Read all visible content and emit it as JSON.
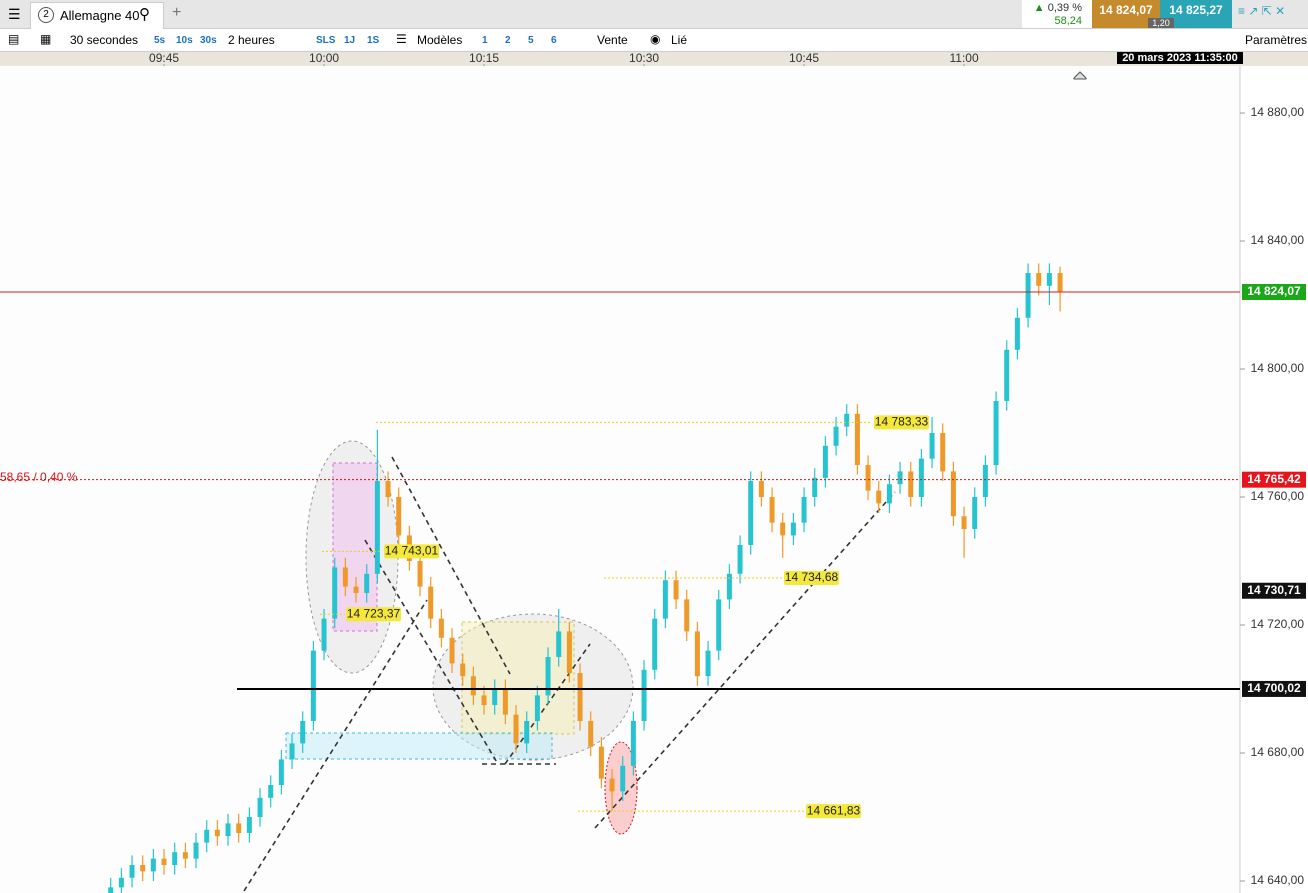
{
  "header": {
    "tab_number": "2",
    "tab_title": "Allemagne 40",
    "change_pct": "0,39 %",
    "change_pts": "58,24",
    "bid": "14 824,07",
    "spread": "1,20",
    "ask": "14 825,27"
  },
  "toolbar": {
    "interval": "30 secondes",
    "intervals": [
      "5s",
      "10s",
      "30s"
    ],
    "range": "2 heures",
    "ranges": [
      "SLS",
      "1J",
      "1S"
    ],
    "templates": "Modèles",
    "layouts": [
      "1",
      "2",
      "5",
      "6"
    ],
    "order": "Vente",
    "link": "Lié",
    "settings": "Paramètres"
  },
  "chart_data": {
    "type": "candlestick",
    "date_label": "20 mars 2023 11:35:00",
    "change_label": "58,65 / 0,40 %",
    "ylim": [
      14636.25,
      14894.7
    ],
    "yticks": [
      {
        "value": 14640,
        "label": "14 640,00"
      },
      {
        "value": 14680,
        "label": "14 680,00"
      },
      {
        "value": 14720,
        "label": "14 720,00"
      },
      {
        "value": 14760,
        "label": "14 760,00"
      },
      {
        "value": 14800,
        "label": "14 800,00"
      },
      {
        "value": 14840,
        "label": "14 840,00"
      },
      {
        "value": 14880,
        "label": "14 880,00"
      }
    ],
    "xticks": [
      {
        "value": 5,
        "label": "09:45"
      },
      {
        "value": 20,
        "label": "10:00"
      },
      {
        "value": 35,
        "label": "10:15"
      },
      {
        "value": 50,
        "label": "10:30"
      },
      {
        "value": 65,
        "label": "10:45"
      },
      {
        "value": 80,
        "label": "11:00"
      }
    ],
    "up_color": "#26c4d0",
    "down_color": "#ef9a28",
    "open": [
      14636,
      14638,
      14641,
      14645,
      14643,
      14647,
      14645,
      14649,
      14647,
      14652,
      14656,
      14654,
      14658,
      14655,
      14660,
      14666,
      14670,
      14678,
      14683,
      14690,
      14712,
      14722,
      14738,
      14732,
      14730,
      14736,
      14765,
      14760,
      14748,
      14740,
      14732,
      14722,
      14716,
      14708,
      14704,
      14698,
      14695,
      14700,
      14692,
      14683,
      14690,
      14698,
      14710,
      14718,
      14705,
      14690,
      14682,
      14672,
      14668,
      14676,
      14690,
      14706,
      14722,
      14734,
      14728,
      14718,
      14704,
      14712,
      14728,
      14736,
      14745,
      14765,
      14760,
      14752,
      14748,
      14752,
      14760,
      14766,
      14776,
      14782,
      14786,
      14770,
      14762,
      14758,
      14764,
      14768,
      14760,
      14772,
      14780,
      14768,
      14754,
      14750,
      14760,
      14770,
      14790,
      14806,
      14816,
      14830,
      14826,
      14830
    ],
    "high": [
      14641,
      14644,
      14648,
      14648,
      14650,
      14650,
      14652,
      14652,
      14655,
      14659,
      14659,
      14661,
      14661,
      14663,
      14669,
      14673,
      14681,
      14686,
      14693,
      14715,
      14725,
      14741,
      14741,
      14735,
      14739,
      14781,
      14768,
      14763,
      14751,
      14743,
      14735,
      14725,
      14719,
      14711,
      14707,
      14701,
      14703,
      14703,
      14695,
      14693,
      14701,
      14713,
      14725,
      14721,
      14708,
      14693,
      14685,
      14675,
      14679,
      14693,
      14709,
      14725,
      14737,
      14737,
      14731,
      14721,
      14715,
      14731,
      14739,
      14748,
      14768,
      14768,
      14763,
      14755,
      14755,
      14763,
      14769,
      14779,
      14785,
      14789,
      14789,
      14773,
      14765,
      14767,
      14771,
      14771,
      14775,
      14785,
      14783,
      14771,
      14757,
      14763,
      14773,
      14793,
      14809,
      14819,
      14833,
      14833,
      14833,
      14832
    ],
    "low": [
      14633,
      14635,
      14638,
      14640,
      14640,
      14642,
      14642,
      14644,
      14644,
      14649,
      14651,
      14651,
      14652,
      14652,
      14657,
      14663,
      14667,
      14675,
      14680,
      14687,
      14709,
      14719,
      14729,
      14727,
      14727,
      14733,
      14757,
      14745,
      14737,
      14729,
      14719,
      14713,
      14705,
      14701,
      14695,
      14692,
      14692,
      14689,
      14680,
      14680,
      14687,
      14695,
      14707,
      14702,
      14687,
      14679,
      14669,
      14661.83,
      14665,
      14673,
      14687,
      14703,
      14719,
      14725,
      14715,
      14701,
      14701,
      14709,
      14725,
      14733,
      14742,
      14757,
      14749,
      14741,
      14745,
      14749,
      14757,
      14763,
      14773,
      14779,
      14767,
      14759,
      14755,
      14755,
      14761,
      14757,
      14757,
      14769,
      14765,
      14751,
      14741,
      14747,
      14757,
      14767,
      14787,
      14803,
      14813,
      14823,
      14820,
      14818
    ],
    "close": [
      14638,
      14641,
      14645,
      14643,
      14647,
      14645,
      14649,
      14647,
      14652,
      14656,
      14654,
      14658,
      14655,
      14660,
      14666,
      14670,
      14678,
      14683,
      14690,
      14712,
      14722,
      14738,
      14732,
      14730,
      14736,
      14765,
      14760,
      14748,
      14740,
      14732,
      14722,
      14716,
      14708,
      14704,
      14698,
      14695,
      14700,
      14692,
      14683,
      14690,
      14698,
      14710,
      14718,
      14705,
      14690,
      14682,
      14672,
      14668,
      14676,
      14690,
      14706,
      14722,
      14734,
      14728,
      14718,
      14704,
      14712,
      14728,
      14736,
      14745,
      14765,
      14760,
      14752,
      14748,
      14752,
      14760,
      14766,
      14776,
      14782,
      14786,
      14770,
      14762,
      14758,
      14764,
      14768,
      14760,
      14772,
      14780,
      14768,
      14754,
      14750,
      14760,
      14770,
      14790,
      14806,
      14816,
      14830,
      14826,
      14830,
      14824.07
    ],
    "levels": [
      {
        "value": 14824.07,
        "label": "14 824,07",
        "line_color": "#d02020",
        "style": "solid",
        "label_color": "#18a818"
      },
      {
        "value": 14765.42,
        "label": "14 765,42",
        "line_color": "#e01010",
        "style": "dotted",
        "label_color": "#e8141c"
      },
      {
        "value": 14730.71,
        "label": "14 730,71",
        "line_color": "#000000",
        "style": "none",
        "label_color": "#111111"
      },
      {
        "value": 14700.02,
        "label": "14 700,02",
        "line_color": "#000000",
        "style": "solid",
        "label_color": "#111111"
      }
    ],
    "annotations": [
      {
        "value": 14783.33,
        "label": "14 783,33"
      },
      {
        "value": 14743.01,
        "label": "14 743,01"
      },
      {
        "value": 14723.37,
        "label": "14 723,37"
      },
      {
        "value": 14734.68,
        "label": "14 734,68"
      },
      {
        "value": 14661.83,
        "label": "14 661,83"
      }
    ]
  }
}
